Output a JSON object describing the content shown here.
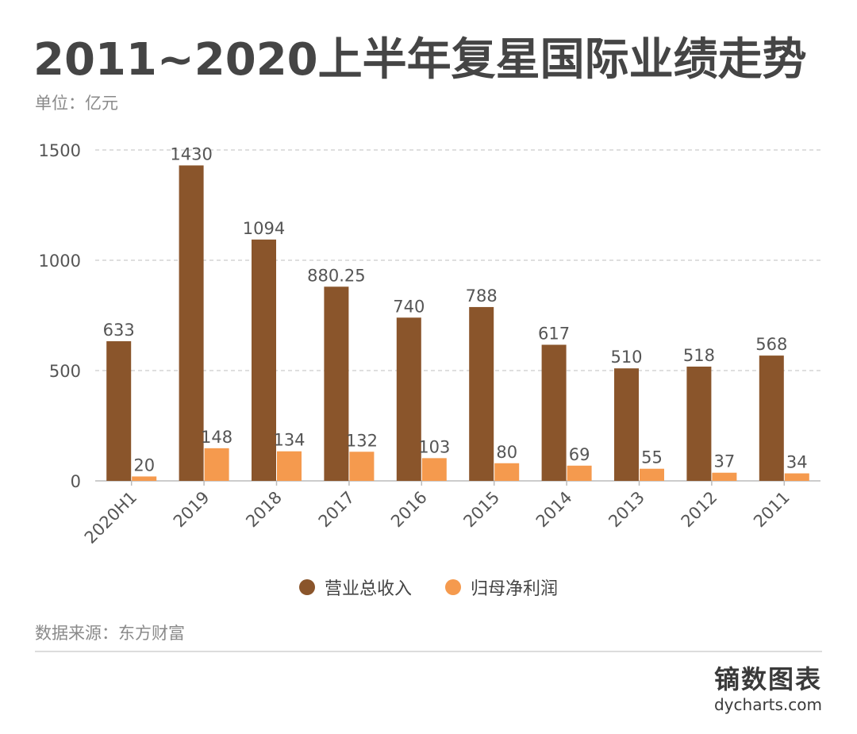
{
  "title": "2011~2020上半年复星国际业绩走势",
  "unit_label": "单位：亿元",
  "source": "数据来源：东方财富",
  "brand": {
    "name_cn": "镝数图表",
    "site": "dycharts.com"
  },
  "colors": {
    "revenue": "#8a552b",
    "profit": "#f59a4e",
    "grid": "#cccccc",
    "axis": "#bbbbbb"
  },
  "chart_data": {
    "type": "bar",
    "categories": [
      "2020H1",
      "2019",
      "2018",
      "2017",
      "2016",
      "2015",
      "2014",
      "2013",
      "2012",
      "2011"
    ],
    "series": [
      {
        "name": "营业总收入",
        "values": [
          633,
          1430,
          1094,
          880.25,
          740,
          788,
          617,
          510,
          518,
          568
        ],
        "labels": [
          "633",
          "1430",
          "1094",
          "880.25",
          "740",
          "788",
          "617",
          "510",
          "518",
          "568"
        ]
      },
      {
        "name": "归母净利润",
        "values": [
          20,
          148,
          134,
          132,
          103,
          80,
          69,
          55,
          37,
          34
        ],
        "labels": [
          "20",
          "148",
          "134",
          "132",
          "103",
          "80",
          "69",
          "55",
          "37",
          "34"
        ]
      }
    ],
    "title": "2011~2020上半年复星国际业绩走势",
    "xlabel": "",
    "ylabel": "",
    "ylim": [
      0,
      1500
    ],
    "yticks": [
      0,
      500,
      1000,
      1500
    ],
    "ytick_labels": [
      "0",
      "500",
      "1000",
      "1500"
    ],
    "grid": true,
    "legend_position": "bottom-center"
  }
}
